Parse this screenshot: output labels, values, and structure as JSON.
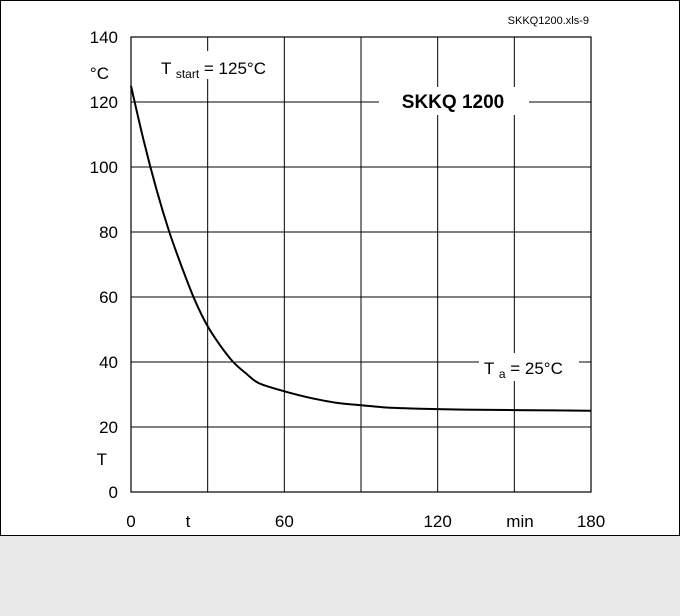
{
  "page": {
    "file_label": "SKKQ1200.xls-9",
    "colors": {
      "background": "#ffffff",
      "footer_band": "#e9e9e9",
      "ink": "#000000"
    }
  },
  "chart_data": {
    "type": "line",
    "title": "SKKQ 1200",
    "ylabel_unit": "°C",
    "ylabel_symbol": "T",
    "xlabel_unit": "min",
    "xlabel_symbol": "t",
    "xlim": [
      0,
      180
    ],
    "ylim": [
      0,
      140
    ],
    "x_ticks": [
      0,
      60,
      120,
      180
    ],
    "x_tick_labels": [
      "0",
      "60",
      "120",
      "180"
    ],
    "x_gridlines": [
      30,
      60,
      90,
      120,
      150
    ],
    "y_ticks": [
      0,
      20,
      40,
      60,
      80,
      100,
      120,
      140
    ],
    "y_tick_labels": [
      "0",
      "20",
      "40",
      "60",
      "80",
      "100",
      "120",
      "140"
    ],
    "grid": true,
    "annotations": {
      "t_start_main": "T",
      "t_start_sub": "start",
      "t_start_value": "= 125°C",
      "t_a_main": "T",
      "t_a_sub": "a",
      "t_a_value": "= 25°C"
    },
    "series": [
      {
        "x": [
          0,
          5,
          10,
          15,
          20,
          25,
          30,
          35,
          40,
          45,
          50,
          60,
          70,
          80,
          90,
          100,
          110,
          120,
          135,
          150,
          165,
          180
        ],
        "y": [
          125,
          108,
          93,
          80,
          69,
          59,
          51,
          45,
          40,
          36.5,
          33.5,
          31,
          29,
          27.5,
          26.7,
          26,
          25.7,
          25.5,
          25.3,
          25.2,
          25.1,
          25
        ]
      }
    ]
  }
}
